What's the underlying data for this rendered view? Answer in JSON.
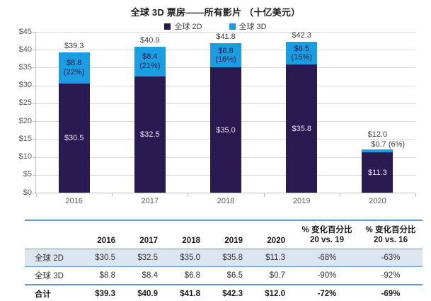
{
  "chart_data": {
    "type": "bar_stacked",
    "title": "全球 3D 票房——所有影片 （十亿美元）",
    "categories": [
      "2016",
      "2017",
      "2018",
      "2019",
      "2020"
    ],
    "series": [
      {
        "name": "全球 2D",
        "color": "#2a1a52",
        "values": [
          30.5,
          32.5,
          35.0,
          35.8,
          11.3
        ]
      },
      {
        "name": "全球 3D",
        "color": "#1b9de2",
        "values": [
          8.8,
          8.4,
          6.8,
          6.5,
          0.7
        ]
      }
    ],
    "totals": [
      39.3,
      40.9,
      41.8,
      42.3,
      12.0
    ],
    "total_labels": [
      "$39.3",
      "$40.9",
      "$41.8",
      "$42.3",
      "$12.0"
    ],
    "labels_2d": [
      "$30.5",
      "$32.5",
      "$35.0",
      "$35.8",
      "$11.3"
    ],
    "labels_3d": [
      [
        "$8.8",
        "(22%)"
      ],
      [
        "$8.4",
        "(21%)"
      ],
      [
        "$6.8",
        "(16%)"
      ],
      [
        "$6.5",
        "(15%)"
      ],
      [
        "$0.7 (6%)"
      ]
    ],
    "y_ticks": [
      "$45",
      "$40",
      "$35",
      "$30",
      "$25",
      "$20",
      "$15",
      "$10",
      "$5",
      "$0"
    ],
    "ylim": [
      0,
      45
    ],
    "grid": true,
    "legend": [
      "全球 2D",
      "全球 3D"
    ],
    "legend_position": "top"
  },
  "table": {
    "headers": [
      "",
      "2016",
      "2017",
      "2018",
      "2019",
      "2020",
      "% 变化百分比\n20 vs. 19",
      "% 变化百分比\n20 vs. 16"
    ],
    "rows": [
      {
        "label": "全球 2D",
        "values": [
          "$30.5",
          "$32.5",
          "$35.0",
          "$35.8",
          "$11.3",
          "-68%",
          "-63%"
        ]
      },
      {
        "label": "全球 3D",
        "values": [
          "$8.8",
          "$8.4",
          "$6.8",
          "$6.5",
          "$0.7",
          "-90%",
          "-92%"
        ]
      },
      {
        "label": "合计",
        "values": [
          "$39.3",
          "$40.9",
          "$41.8",
          "$42.3",
          "$12.0",
          "-72%",
          "-69%"
        ]
      }
    ]
  },
  "colors": {
    "series_2d": "#2a1a52",
    "series_3d": "#1b9de2",
    "table_line": "#5b9bd5",
    "row_highlight": "#dce6f1",
    "gridline": "#d9d9d9"
  }
}
